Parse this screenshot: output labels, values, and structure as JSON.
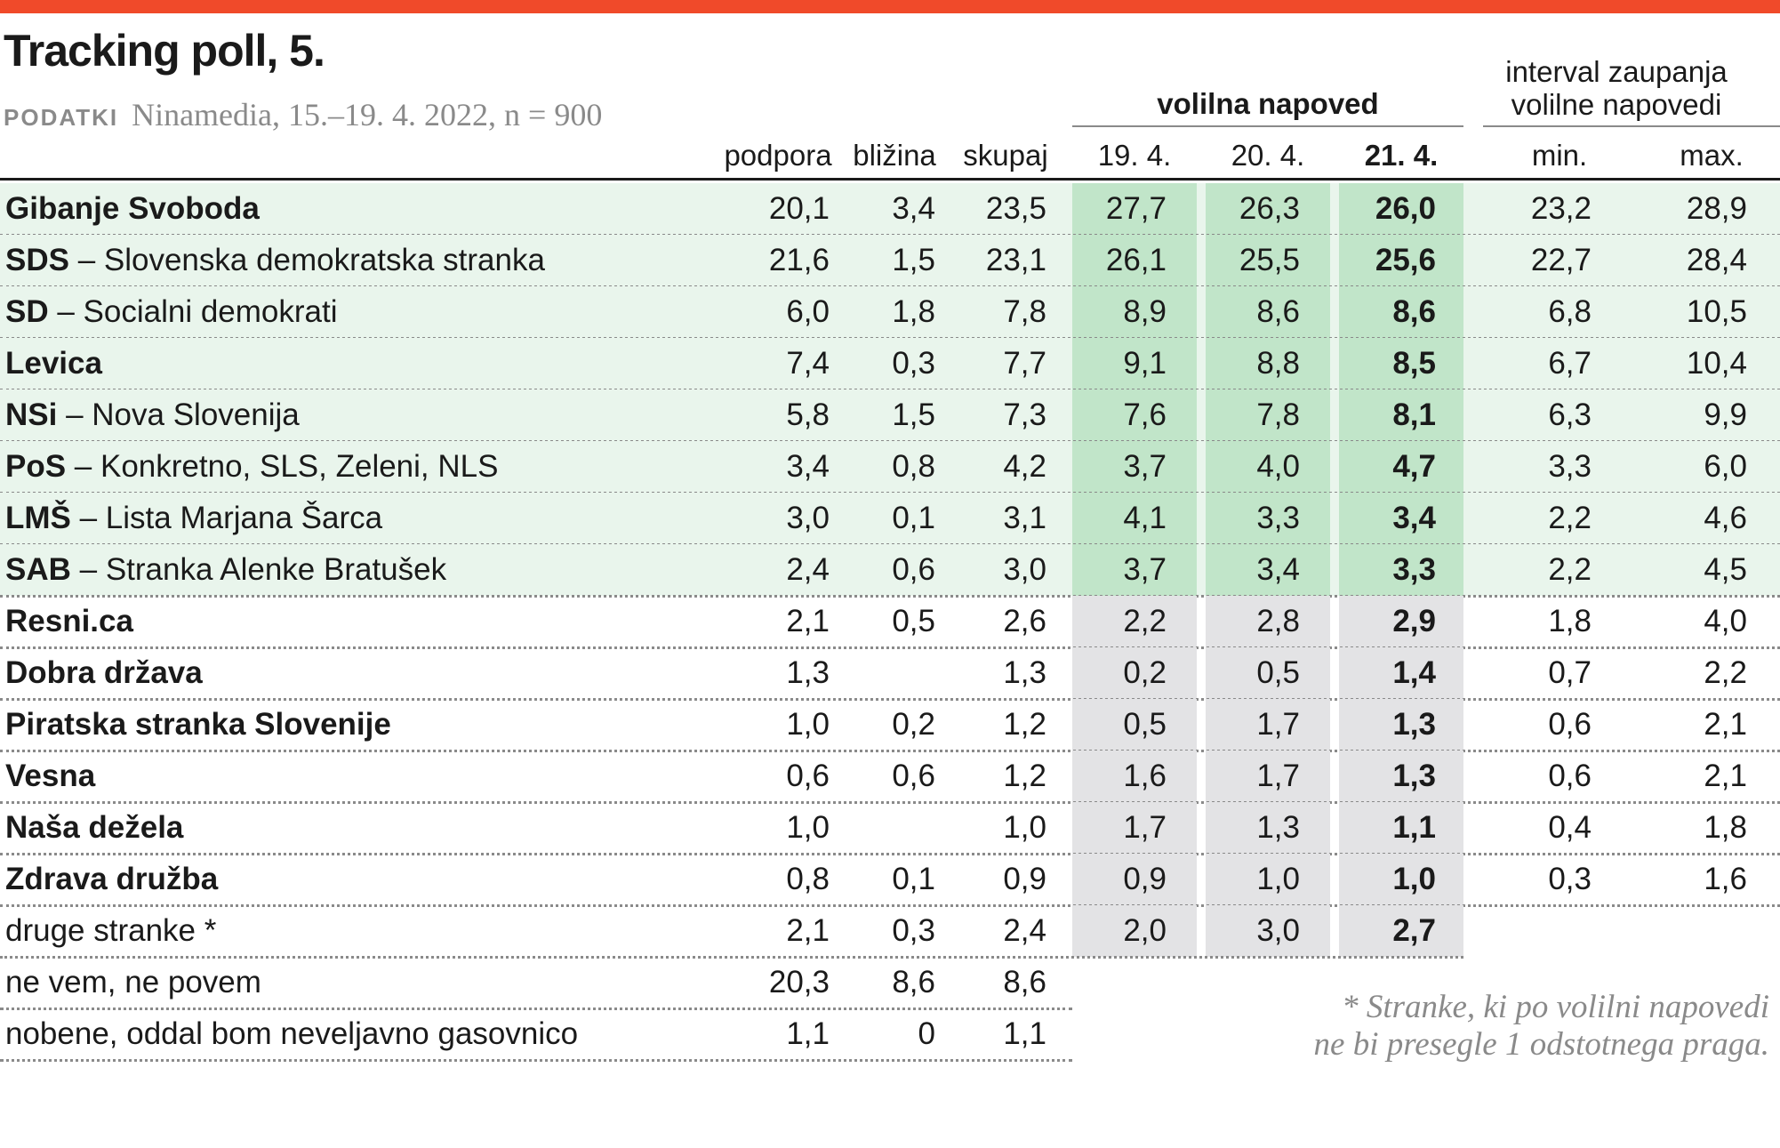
{
  "colors": {
    "accent": "#f04a2a",
    "green": "#e9f5ec",
    "green_dark": "#c1e5c9",
    "grey": "#e3e3e5",
    "text": "#1a1a1a",
    "muted": "#8a8a8a"
  },
  "header": {
    "title": "Tracking poll, 5.",
    "source_label": "PODATKI",
    "source_text": "Ninamedia, 15.–19. 4. 2022, n = 900",
    "group_forecast": "volilna napoved",
    "group_interval_line1": "interval zaupanja",
    "group_interval_line2": "volilne napovedi",
    "col_podpora": "podpora",
    "col_blizina": "bližina",
    "col_skupaj": "skupaj",
    "col_d19": "19. 4.",
    "col_d20": "20. 4.",
    "col_d21": "21. 4.",
    "col_min": "min.",
    "col_max": "max."
  },
  "footnote": {
    "line1": "* Stranke, ki po volilni napovedi",
    "line2": "ne bi presegle 1 odstotnega praga."
  },
  "chart_data": {
    "type": "table",
    "title": "Tracking poll, 5.",
    "columns": [
      "podpora",
      "bližina",
      "skupaj",
      "19. 4.",
      "20. 4.",
      "21. 4.",
      "min.",
      "max."
    ],
    "rows": [
      {
        "abbr": "Gibanje Svoboda",
        "full": "",
        "tier": "main",
        "podpora": "20,1",
        "blizina": "3,4",
        "skupaj": "23,5",
        "d19": "27,7",
        "d20": "26,3",
        "d21": "26,0",
        "min": "23,2",
        "max": "28,9"
      },
      {
        "abbr": "SDS",
        "full": " – Slovenska demokratska stranka",
        "tier": "main",
        "podpora": "21,6",
        "blizina": "1,5",
        "skupaj": "23,1",
        "d19": "26,1",
        "d20": "25,5",
        "d21": "25,6",
        "min": "22,7",
        "max": "28,4"
      },
      {
        "abbr": "SD",
        "full": " – Socialni demokrati",
        "tier": "main",
        "podpora": "6,0",
        "blizina": "1,8",
        "skupaj": "7,8",
        "d19": "8,9",
        "d20": "8,6",
        "d21": "8,6",
        "min": "6,8",
        "max": "10,5"
      },
      {
        "abbr": "Levica",
        "full": "",
        "tier": "main",
        "podpora": "7,4",
        "blizina": "0,3",
        "skupaj": "7,7",
        "d19": "9,1",
        "d20": "8,8",
        "d21": "8,5",
        "min": "6,7",
        "max": "10,4"
      },
      {
        "abbr": "NSi",
        "full": " – Nova Slovenija",
        "tier": "main",
        "podpora": "5,8",
        "blizina": "1,5",
        "skupaj": "7,3",
        "d19": "7,6",
        "d20": "7,8",
        "d21": "8,1",
        "min": "6,3",
        "max": "9,9"
      },
      {
        "abbr": "PoS",
        "full": " – Konkretno, SLS, Zeleni, NLS",
        "tier": "main",
        "podpora": "3,4",
        "blizina": "0,8",
        "skupaj": "4,2",
        "d19": "3,7",
        "d20": "4,0",
        "d21": "4,7",
        "min": "3,3",
        "max": "6,0"
      },
      {
        "abbr": "LMŠ",
        "full": " – Lista Marjana Šarca",
        "tier": "main",
        "podpora": "3,0",
        "blizina": "0,1",
        "skupaj": "3,1",
        "d19": "4,1",
        "d20": "3,3",
        "d21": "3,4",
        "min": "2,2",
        "max": "4,6"
      },
      {
        "abbr": "SAB",
        "full": " – Stranka Alenke Bratušek",
        "tier": "main",
        "podpora": "2,4",
        "blizina": "0,6",
        "skupaj": "3,0",
        "d19": "3,7",
        "d20": "3,4",
        "d21": "3,3",
        "min": "2,2",
        "max": "4,5"
      },
      {
        "abbr": "Resni.ca",
        "full": "",
        "tier": "minor",
        "podpora": "2,1",
        "blizina": "0,5",
        "skupaj": "2,6",
        "d19": "2,2",
        "d20": "2,8",
        "d21": "2,9",
        "min": "1,8",
        "max": "4,0"
      },
      {
        "abbr": "Dobra država",
        "full": "",
        "tier": "minor",
        "podpora": "1,3",
        "blizina": "",
        "skupaj": "1,3",
        "d19": "0,2",
        "d20": "0,5",
        "d21": "1,4",
        "min": "0,7",
        "max": "2,2"
      },
      {
        "abbr": "Piratska stranka Slovenije",
        "full": "",
        "tier": "minor",
        "podpora": "1,0",
        "blizina": "0,2",
        "skupaj": "1,2",
        "d19": "0,5",
        "d20": "1,7",
        "d21": "1,3",
        "min": "0,6",
        "max": "2,1"
      },
      {
        "abbr": "Vesna",
        "full": "",
        "tier": "minor",
        "podpora": "0,6",
        "blizina": "0,6",
        "skupaj": "1,2",
        "d19": "1,6",
        "d20": "1,7",
        "d21": "1,3",
        "min": "0,6",
        "max": "2,1"
      },
      {
        "abbr": "Naša dežela",
        "full": "",
        "tier": "minor",
        "podpora": "1,0",
        "blizina": "",
        "skupaj": "1,0",
        "d19": "1,7",
        "d20": "1,3",
        "d21": "1,1",
        "min": "0,4",
        "max": "1,8"
      },
      {
        "abbr": "Zdrava družba",
        "full": "",
        "tier": "minor",
        "podpora": "0,8",
        "blizina": "0,1",
        "skupaj": "0,9",
        "d19": "0,9",
        "d20": "1,0",
        "d21": "1,0",
        "min": "0,3",
        "max": "1,6"
      },
      {
        "abbr": "",
        "full": "druge stranke *",
        "tier": "other",
        "podpora": "2,1",
        "blizina": "0,3",
        "skupaj": "2,4",
        "d19": "2,0",
        "d20": "3,0",
        "d21": "2,7",
        "min": "",
        "max": ""
      },
      {
        "abbr": "",
        "full": "ne vem, ne povem",
        "tier": "none",
        "podpora": "20,3",
        "blizina": "8,6",
        "skupaj": "8,6",
        "d19": "",
        "d20": "",
        "d21": "",
        "min": "",
        "max": ""
      },
      {
        "abbr": "",
        "full": "nobene, oddal bom neveljavno gasovnico",
        "tier": "none",
        "podpora": "1,1",
        "blizina": "0",
        "skupaj": "1,1",
        "d19": "",
        "d20": "",
        "d21": "",
        "min": "",
        "max": ""
      }
    ]
  }
}
